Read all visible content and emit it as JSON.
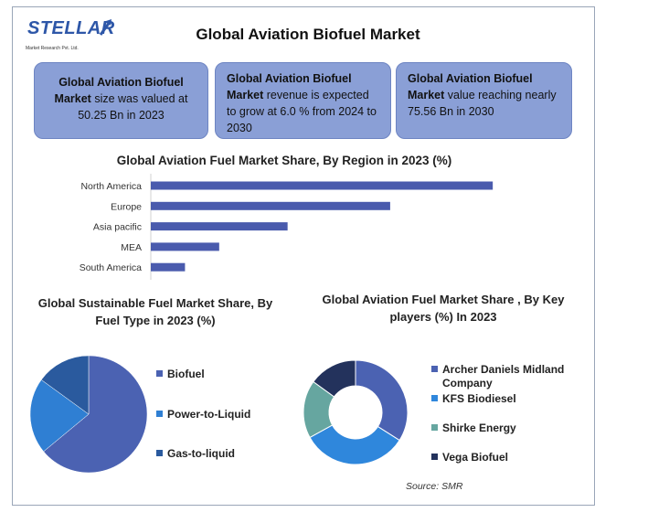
{
  "header": {
    "logo_text": "STELLAR",
    "logo_sub": "Market Research Pvt. Ltd.",
    "title": "Global Aviation Biofuel Market"
  },
  "cards": [
    {
      "bold": "Global Aviation Biofuel Market",
      "rest": " size was valued at 50.25 Bn in 2023"
    },
    {
      "bold": "Global Aviation Biofuel Market",
      "rest": " revenue is expected to grow at 6.0 % from 2024 to 2030"
    },
    {
      "bold": "Global Aviation Biofuel Market",
      "rest": " value reaching nearly 75.56 Bn in 2030"
    }
  ],
  "colors": {
    "bar": "#4a5bad",
    "card_bg": "#8a9fd6",
    "pie": [
      "#4b62b2",
      "#2f7fd3",
      "#2a5a9e"
    ],
    "donut": [
      "#4b62b2",
      "#2f87dc",
      "#66a6a0",
      "#23325c"
    ]
  },
  "chart_data": [
    {
      "type": "bar",
      "orientation": "horizontal",
      "title": "Global Aviation Fuel Market Share, By Region in 2023 (%)",
      "categories": [
        "North America",
        "Europe",
        "Asia pacific",
        "MEA",
        "South America"
      ],
      "values": [
        50,
        35,
        20,
        10,
        5
      ],
      "xlim": [
        0,
        60
      ],
      "grid": false
    },
    {
      "type": "pie",
      "title": "Global Sustainable Fuel Market Share, By Fuel Type in 2023 (%)",
      "categories": [
        "Biofuel",
        "Power-to-Liquid",
        "Gas-to-liquid"
      ],
      "values": [
        64,
        21,
        15
      ],
      "legend": "right"
    },
    {
      "type": "pie",
      "donut": true,
      "title": "Global Aviation Fuel Market Share , By Key players (%) In 2023",
      "categories": [
        "Archer Daniels Midland Company",
        "KFS Biodiesel",
        "Shirke Energy",
        "Vega Biofuel"
      ],
      "values": [
        34,
        33,
        18,
        15
      ],
      "legend": "right"
    }
  ],
  "source": "Source: SMR"
}
